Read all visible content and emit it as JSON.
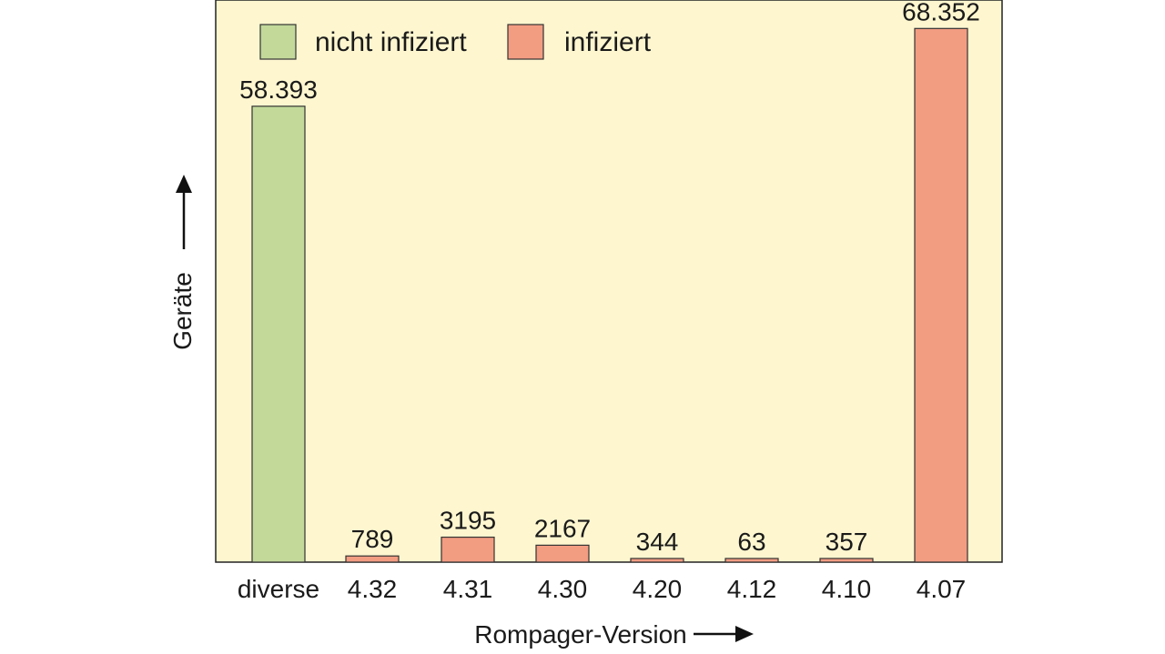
{
  "colors": {
    "background": "#fdf6cf",
    "not_infected": "#c2d99a",
    "infected": "#f29c82",
    "axis": "#222222"
  },
  "chart_data": {
    "type": "bar",
    "xlabel": "Rompager-Version",
    "ylabel": "Geräte",
    "ylim": [
      0,
      72000
    ],
    "grid": false,
    "legend_placement": "top-left",
    "categories": [
      "diverse",
      "4.32",
      "4.31",
      "4.30",
      "4.20",
      "4.12",
      "4.10",
      "4.07"
    ],
    "values": [
      58393,
      789,
      3195,
      2167,
      344,
      63,
      357,
      68352
    ],
    "value_labels": [
      "58.393",
      "789",
      "3195",
      "2167",
      "344",
      "63",
      "357",
      "68.352"
    ],
    "bar_series": [
      "nicht infiziert",
      "infiziert",
      "infiziert",
      "infiziert",
      "infiziert",
      "infiziert",
      "infiziert",
      "infiziert"
    ],
    "series": [
      {
        "name": "nicht infiziert",
        "color": "#c2d99a"
      },
      {
        "name": "infiziert",
        "color": "#f29c82"
      }
    ]
  }
}
